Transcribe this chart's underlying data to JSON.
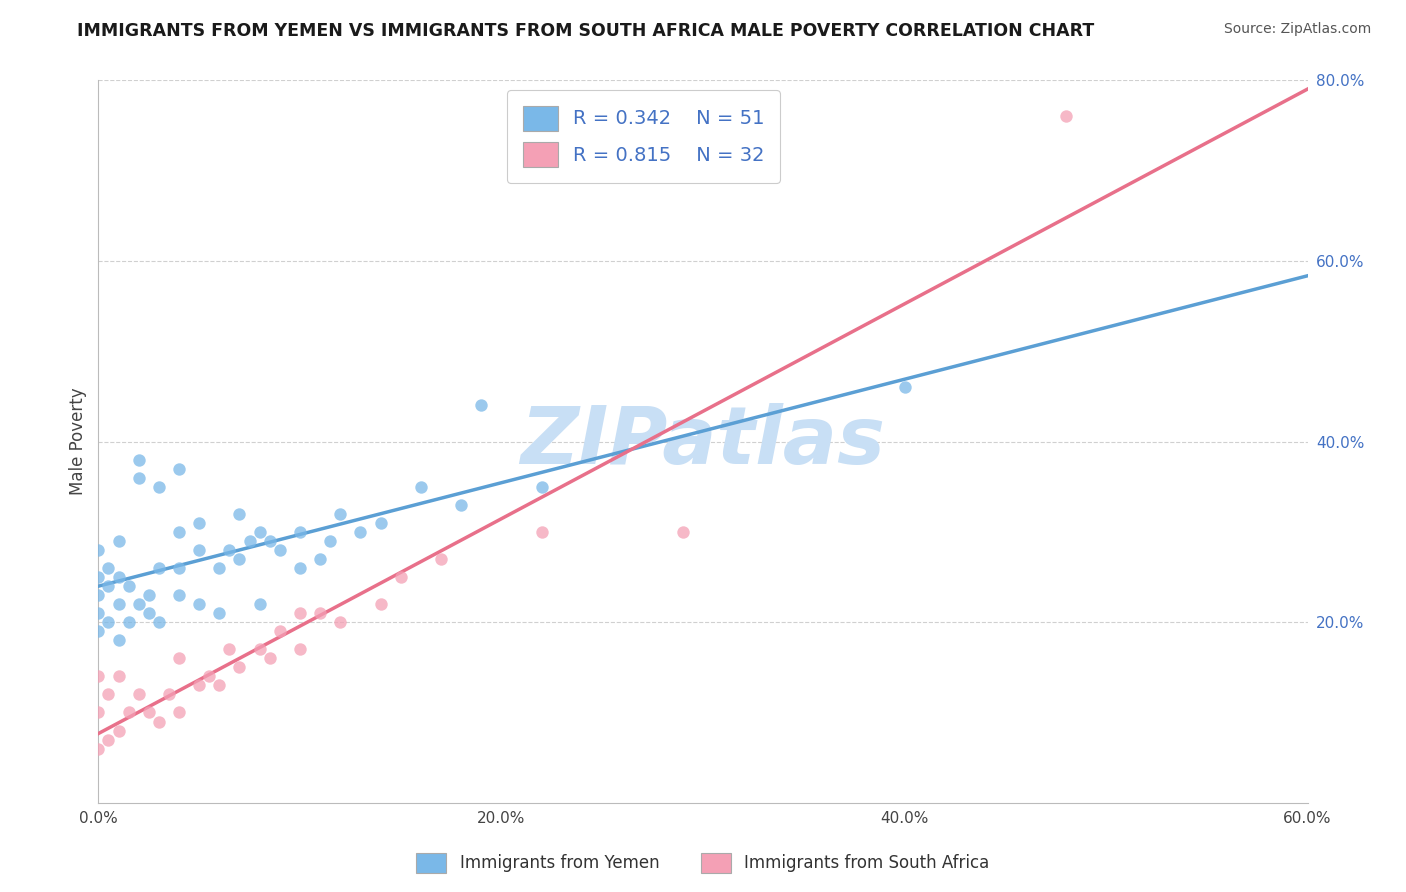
{
  "title": "IMMIGRANTS FROM YEMEN VS IMMIGRANTS FROM SOUTH AFRICA MALE POVERTY CORRELATION CHART",
  "source": "Source: ZipAtlas.com",
  "ylabel": "Male Poverty",
  "xlim": [
    0.0,
    0.6
  ],
  "ylim": [
    0.0,
    0.8
  ],
  "xtick_positions": [
    0.0,
    0.2,
    0.4,
    0.6
  ],
  "xtick_labels": [
    "0.0%",
    "20.0%",
    "40.0%",
    "60.0%"
  ],
  "ytick_positions": [
    0.2,
    0.4,
    0.6,
    0.8
  ],
  "ytick_labels": [
    "20.0%",
    "40.0%",
    "60.0%",
    "80.0%"
  ],
  "legend_r1": "R = 0.342",
  "legend_n1": "N = 51",
  "legend_r2": "R = 0.815",
  "legend_n2": "N = 32",
  "color_yemen": "#7ab8e8",
  "color_sa": "#f4a0b5",
  "line_color_yemen": "#5b9fd4",
  "line_color_sa": "#e8708a",
  "tick_color_right": "#4472c4",
  "legend_text_color": "#4472c4",
  "watermark_text": "ZIPatlas",
  "watermark_color": "#c8dff5",
  "grid_color": "#d0d0d0",
  "spine_color": "#bbbbbb",
  "yemen_x": [
    0.0,
    0.0,
    0.0,
    0.0,
    0.0,
    0.005,
    0.005,
    0.005,
    0.01,
    0.01,
    0.01,
    0.01,
    0.015,
    0.015,
    0.02,
    0.02,
    0.02,
    0.025,
    0.025,
    0.03,
    0.03,
    0.03,
    0.04,
    0.04,
    0.04,
    0.04,
    0.05,
    0.05,
    0.05,
    0.06,
    0.06,
    0.065,
    0.07,
    0.07,
    0.075,
    0.08,
    0.08,
    0.085,
    0.09,
    0.1,
    0.1,
    0.11,
    0.115,
    0.12,
    0.13,
    0.14,
    0.16,
    0.18,
    0.19,
    0.22,
    0.4
  ],
  "yemen_y": [
    0.19,
    0.21,
    0.23,
    0.25,
    0.28,
    0.2,
    0.24,
    0.26,
    0.18,
    0.22,
    0.25,
    0.29,
    0.2,
    0.24,
    0.22,
    0.36,
    0.38,
    0.21,
    0.23,
    0.2,
    0.26,
    0.35,
    0.23,
    0.26,
    0.3,
    0.37,
    0.22,
    0.28,
    0.31,
    0.21,
    0.26,
    0.28,
    0.27,
    0.32,
    0.29,
    0.22,
    0.3,
    0.29,
    0.28,
    0.26,
    0.3,
    0.27,
    0.29,
    0.32,
    0.3,
    0.31,
    0.35,
    0.33,
    0.44,
    0.35,
    0.46
  ],
  "sa_x": [
    0.0,
    0.0,
    0.0,
    0.005,
    0.005,
    0.01,
    0.01,
    0.015,
    0.02,
    0.025,
    0.03,
    0.035,
    0.04,
    0.04,
    0.05,
    0.055,
    0.06,
    0.065,
    0.07,
    0.08,
    0.085,
    0.09,
    0.1,
    0.1,
    0.11,
    0.12,
    0.14,
    0.15,
    0.17,
    0.22,
    0.29,
    0.48
  ],
  "sa_y": [
    0.06,
    0.1,
    0.14,
    0.07,
    0.12,
    0.08,
    0.14,
    0.1,
    0.12,
    0.1,
    0.09,
    0.12,
    0.1,
    0.16,
    0.13,
    0.14,
    0.13,
    0.17,
    0.15,
    0.17,
    0.16,
    0.19,
    0.17,
    0.21,
    0.21,
    0.2,
    0.22,
    0.25,
    0.27,
    0.3,
    0.3,
    0.76
  ]
}
